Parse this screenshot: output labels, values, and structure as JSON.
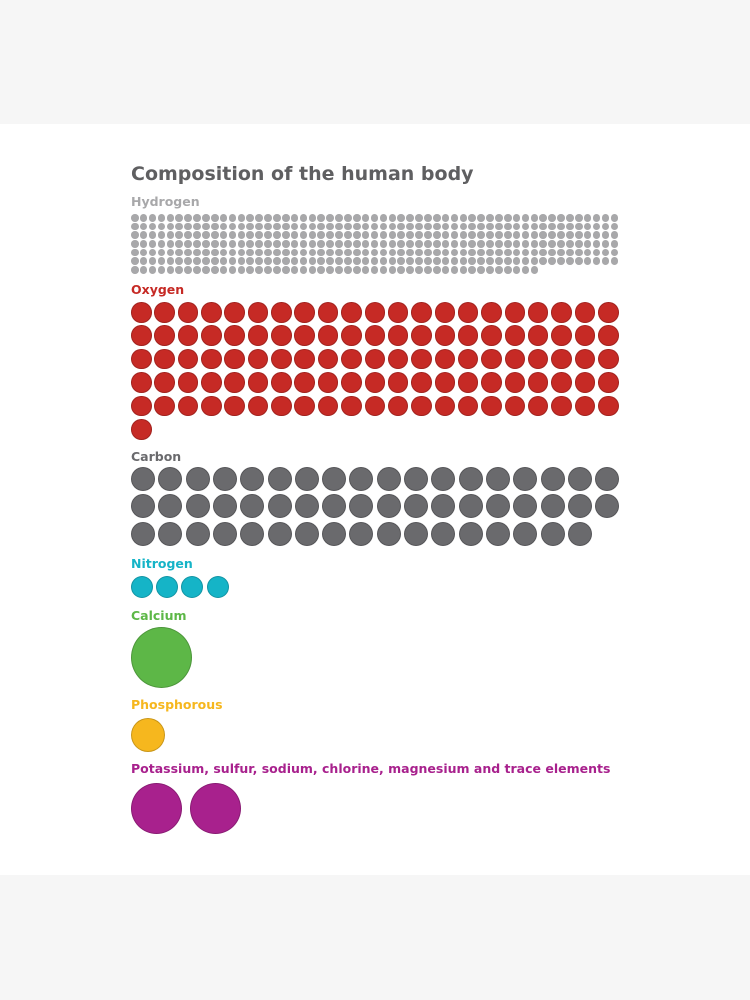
{
  "chart_data": {
    "type": "pictogram",
    "title": "Composition of the human body",
    "groups": [
      {
        "label": "Hydrogen",
        "color": "#a8a8aa",
        "dot_count": 376,
        "dot_scale": "small"
      },
      {
        "label": "Oxygen",
        "color": "#c62a25",
        "dot_count": 106,
        "dot_scale": "medium"
      },
      {
        "label": "Carbon",
        "color": "#6a6a6d",
        "dot_count": 53,
        "dot_scale": "medium"
      },
      {
        "label": "Nitrogen",
        "color": "#15b4c7",
        "dot_count": 4,
        "dot_scale": "medium-small"
      },
      {
        "label": "Calcium",
        "color": "#5db747",
        "dot_count": 1,
        "dot_scale": "large"
      },
      {
        "label": "Phosphorous",
        "color": "#f6b71e",
        "dot_count": 1,
        "dot_scale": "medium"
      },
      {
        "label": "Potassium, sulfur, sodium, chlorine, magnesium and trace elements",
        "color": "#a8218d",
        "dot_count": 2,
        "dot_scale": "large"
      }
    ]
  }
}
